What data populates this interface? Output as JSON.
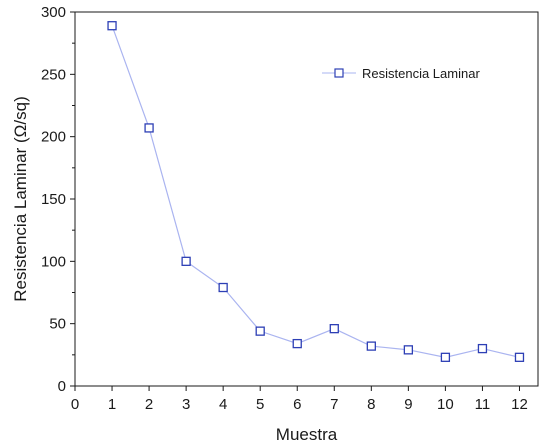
{
  "chart_data": {
    "type": "line",
    "xlabel": "Muestra",
    "ylabel": "Resistencia Laminar (Ω/sq)",
    "xlim": [
      0,
      12.5
    ],
    "ylim": [
      0,
      300
    ],
    "xticks": [
      0,
      1,
      2,
      3,
      4,
      5,
      6,
      7,
      8,
      9,
      10,
      11,
      12
    ],
    "yticks": [
      0,
      50,
      100,
      150,
      200,
      250,
      300
    ],
    "grid": false,
    "legend_position": "top-right",
    "series": [
      {
        "name": "Resistencia Laminar",
        "marker": "open-square",
        "line_color": "#aab4f0",
        "marker_color": "#2d3fb5",
        "x": [
          1,
          2,
          3,
          4,
          5,
          6,
          7,
          8,
          9,
          10,
          11,
          12
        ],
        "y": [
          289,
          207,
          100,
          79,
          44,
          34,
          46,
          32,
          29,
          23,
          30,
          23
        ]
      }
    ]
  }
}
